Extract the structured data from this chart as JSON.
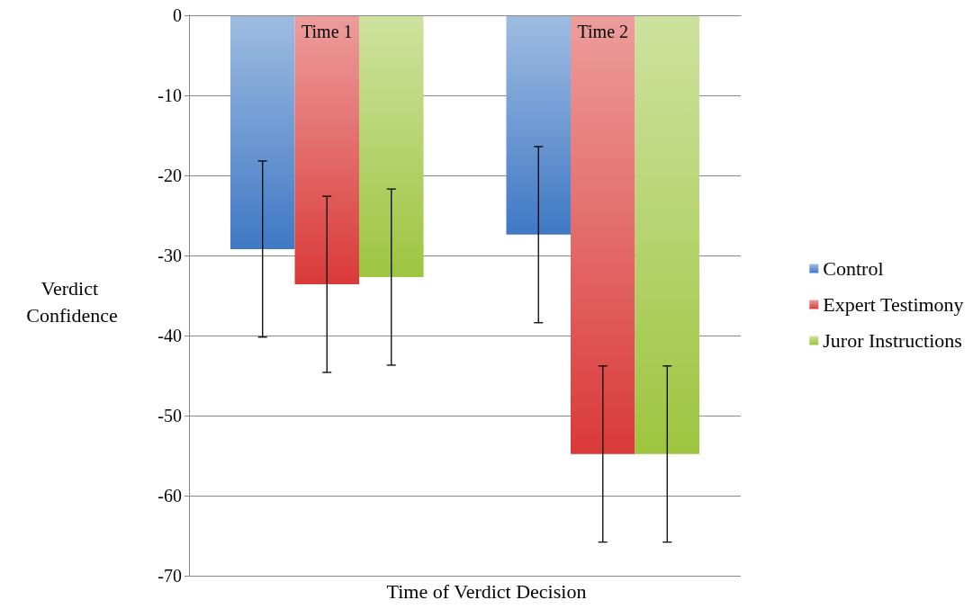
{
  "chart_data": {
    "type": "bar",
    "xlabel": "Time of Verdict Decision",
    "ylabel": "Verdict Confidence",
    "categories": [
      "Time 1",
      "Time 2"
    ],
    "series": [
      {
        "name": "Control",
        "color": "#3f78c4",
        "values": [
          -29.2,
          -27.4
        ],
        "errors": [
          11,
          11
        ]
      },
      {
        "name": "Expert Testimony",
        "color": "#d93a38",
        "values": [
          -33.6,
          -54.8
        ],
        "errors": [
          11,
          11
        ]
      },
      {
        "name": "Juror Instructions",
        "color": "#9dc53f",
        "values": [
          -32.7,
          -54.8
        ],
        "errors": [
          11,
          11
        ]
      }
    ],
    "ylim": [
      -70,
      0
    ],
    "yticks": [
      -70,
      -60,
      -50,
      -40,
      -30,
      -20,
      -10,
      0
    ],
    "grid": "y",
    "legend": "right"
  }
}
